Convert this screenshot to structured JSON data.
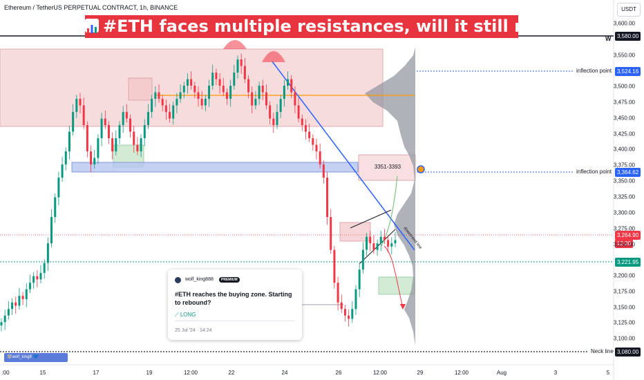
{
  "header": {
    "symbol": "Ethereum / TetherUS PERPETUAL CONTRACT, 1h, BINANCE",
    "headline": "#ETH faces multiple resistances, will it still rise?",
    "currency": "USDT"
  },
  "levels": {
    "w_label": "W",
    "w_price": "3,580.00",
    "inflection_label_1": "inflection point",
    "inflection_price_1": "3,524.16",
    "inflection_label_2": "inflection point",
    "inflection_price_2": "3,364.62",
    "current_price": "3,264.90",
    "countdown": "12:30",
    "green_level_price": "3,221.95",
    "neck_label": "Neck line",
    "neck_price": "3,080.00",
    "zone_label": "3351-3393",
    "trend_label": "downtrend line"
  },
  "price_axis": [
    "3,600.00",
    "3,550.00",
    "3,500.00",
    "3,475.00",
    "3,450.00",
    "3,425.00",
    "3,400.00",
    "3,375.00",
    "3,350.00",
    "3,325.00",
    "3,300.00",
    "3,275.00",
    "3,250.00",
    "3,200.00",
    "3,175.00",
    "3,150.00",
    "3,125.00",
    "3,100.00"
  ],
  "time_axis": [
    ":00",
    "15",
    "17",
    "19",
    "12:00",
    "22",
    "24",
    "26",
    "12:00",
    "29",
    "12:00",
    "Aug",
    "3",
    "5"
  ],
  "idea_card": {
    "author": "wolf_king888",
    "badge": "PREMIUM",
    "title": "#ETH reaches the buying zone. Starting to rebound?",
    "direction": "⟋ LONG",
    "date": "25 Jul '24 · 14:24"
  },
  "watermark": "🐺wolf_king8 💙",
  "colors": {
    "up": "#089981",
    "down": "#f23645",
    "headline_bg": "#e7343e",
    "blue_line": "#2962ff",
    "orange_line": "#ff9800",
    "resistance_zone": "#f2c4c8",
    "support_zone": "#b7c5f0",
    "green_zone": "#c8e6c9"
  },
  "chart_data": {
    "type": "candlestick",
    "ylim": [
      3075,
      3620
    ],
    "series": [
      {
        "values": [
          3140,
          3150,
          3160,
          3170,
          3165,
          3180,
          3175,
          3190,
          3200,
          3210,
          3205,
          3215,
          3230,
          3260,
          3300,
          3330,
          3360,
          3380,
          3400,
          3430,
          3460,
          3480,
          3470,
          3440,
          3400,
          3380,
          3390,
          3420,
          3450,
          3440,
          3420,
          3400,
          3420,
          3440,
          3460,
          3450,
          3430,
          3410,
          3400,
          3420,
          3440,
          3460,
          3480,
          3490,
          3480,
          3470,
          3460,
          3450,
          3470,
          3480,
          3490,
          3500,
          3510,
          3500,
          3490,
          3480,
          3470,
          3480,
          3500,
          3520,
          3510,
          3500,
          3490,
          3480,
          3500,
          3520,
          3540,
          3530,
          3510,
          3490,
          3470,
          3480,
          3500,
          3490,
          3470,
          3450,
          3440,
          3460,
          3480,
          3500,
          3510,
          3490,
          3470,
          3450,
          3440,
          3430,
          3420,
          3410,
          3400,
          3380,
          3360,
          3300,
          3250,
          3200,
          3170,
          3160,
          3150,
          3145,
          3160,
          3190,
          3220,
          3250,
          3270,
          3260,
          3250,
          3260,
          3270,
          3265,
          3255,
          3260,
          3265
        ]
      }
    ]
  }
}
